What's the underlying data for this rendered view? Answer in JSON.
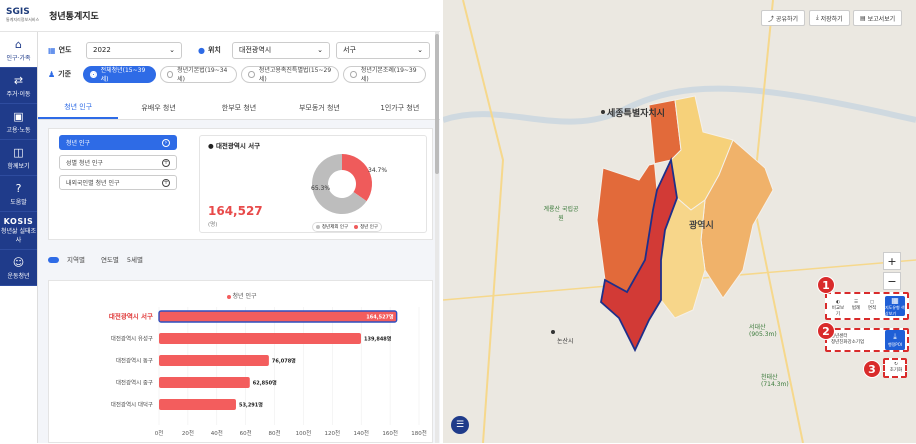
{
  "header": {
    "logo_main": "SGIS",
    "logo_sub": "통계지리정보서비스",
    "title": "청년통계지도"
  },
  "sidebar": {
    "items": [
      {
        "label": "인구·가족",
        "icon": "home-icon"
      },
      {
        "label": "주거·이동",
        "icon": "house-move-icon"
      },
      {
        "label": "고용·노동",
        "icon": "briefcase-icon"
      },
      {
        "label": "함께보기",
        "icon": "book-icon"
      },
      {
        "label": "도움말",
        "icon": "help-icon"
      },
      {
        "label": "청년삶 실태조사",
        "kosis": "KOSIS"
      },
      {
        "label": "운동청년",
        "icon": "logo-icon"
      }
    ]
  },
  "filters": {
    "year_label": "연도",
    "year_value": "2022",
    "location_label": "위치",
    "sido_value": "대전광역시",
    "sgg_value": "서구",
    "criteria_label": "기준",
    "criteria": [
      "전체청년(15~39세)",
      "청년기본법(19~34세)",
      "청년고용촉진특별법(15~29세)",
      "청년기본조례(19~39세)"
    ]
  },
  "tabs": [
    "청년 인구",
    "유배우 청년",
    "한부모 청년",
    "부모동거 청년",
    "1인가구 청년"
  ],
  "subbuttons": [
    "청년 인구",
    "성별 청년 인구",
    "내외국인별 청년 인구"
  ],
  "stat": {
    "region": "대전광역시 서구",
    "value": "164,527",
    "unit": "(명)",
    "pie_pct_youth": "34.7%",
    "pie_pct_nonyouth": "65.3%",
    "legend_nonyouth": "청년제외 인구",
    "legend_youth": "청년 인구",
    "color_nonyouth": "#bdbdbd",
    "color_youth": "#ef5b5b"
  },
  "modebar": {
    "toggle_label": "지역별",
    "opt2": "연도별",
    "opt3": "5세별"
  },
  "chart_data": {
    "type": "bar",
    "legend": "청년 인구",
    "categories": [
      "대전광역시 서구",
      "대전광역시 유성구",
      "대전광역시 동구",
      "대전광역시 중구",
      "대전광역시 대덕구"
    ],
    "values": [
      164527,
      139848,
      76078,
      62850,
      53291
    ],
    "value_labels": [
      "164,527명",
      "139,848명",
      "76,078명",
      "62,850명",
      "53,291명"
    ],
    "xlim": [
      0,
      180000
    ],
    "xticks": [
      "0천",
      "20천",
      "40천",
      "60천",
      "80천",
      "100천",
      "120천",
      "140천",
      "160천",
      "180천"
    ],
    "bar_color": "#f35d5d",
    "highlight_color": "#2e4fbf"
  },
  "map": {
    "share_label": "공유하기",
    "save_label": "저장하기",
    "report_label": "보고서보기",
    "zoom_in": "+",
    "zoom_out": "−",
    "label_sejong": "세종특별자치시",
    "label_daejeon": "광역시",
    "label_nonsan": "논산시",
    "label_gyeryong": "계룡산 국립공원",
    "label_seodaesan": "서대산 (905.3m)",
    "label_cheontaesan": "천태산 (714.3m)",
    "badge1": "1",
    "badge2": "2",
    "badge3": "3",
    "tool_compare": "비교보기",
    "tool_legend": "범례",
    "tool_area": "면적",
    "tool_map_btn": "지도유형 색상보기",
    "tool_youth_center": "청년센터",
    "tool_youth_job": "청년친화강소기업",
    "tool_poi_btn": "행정POI",
    "tool_reset": "초기화"
  }
}
